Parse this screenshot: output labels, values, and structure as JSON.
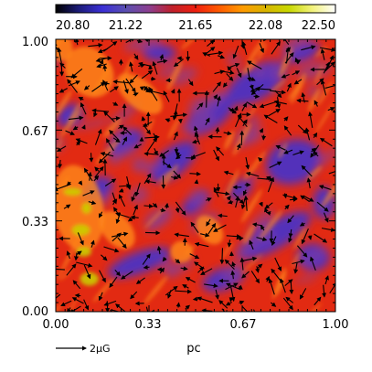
{
  "chart_data": {
    "type": "heatmap",
    "colorbar": {
      "ticks": [
        "20.80",
        "21.22",
        "21.65",
        "22.08",
        "22.50"
      ],
      "range": [
        20.8,
        22.5
      ],
      "stops": [
        "#000000",
        "#1c1c7a",
        "#3b2fd6",
        "#5a4fb0",
        "#8c3f90",
        "#c0202a",
        "#ef1f0f",
        "#ff5a00",
        "#ff9a00",
        "#d8b400",
        "#c8d800",
        "#f2f27a",
        "#ffffff"
      ]
    },
    "x_ticks": [
      "0.00",
      "0.33",
      "0.67",
      "1.00"
    ],
    "y_ticks": [
      "0.00",
      "0.33",
      "0.67",
      "1.00"
    ],
    "x_range": [
      0,
      1
    ],
    "y_range": [
      0,
      1
    ],
    "xlabel": "pc",
    "vector_scale_label": "2μG",
    "field_colors": {
      "background": "#e22a12",
      "low": "#3b34d8",
      "mid": "#8a3e90",
      "high": "#ff8a1a",
      "peak": "#c8d400",
      "vector": "#000000"
    }
  }
}
